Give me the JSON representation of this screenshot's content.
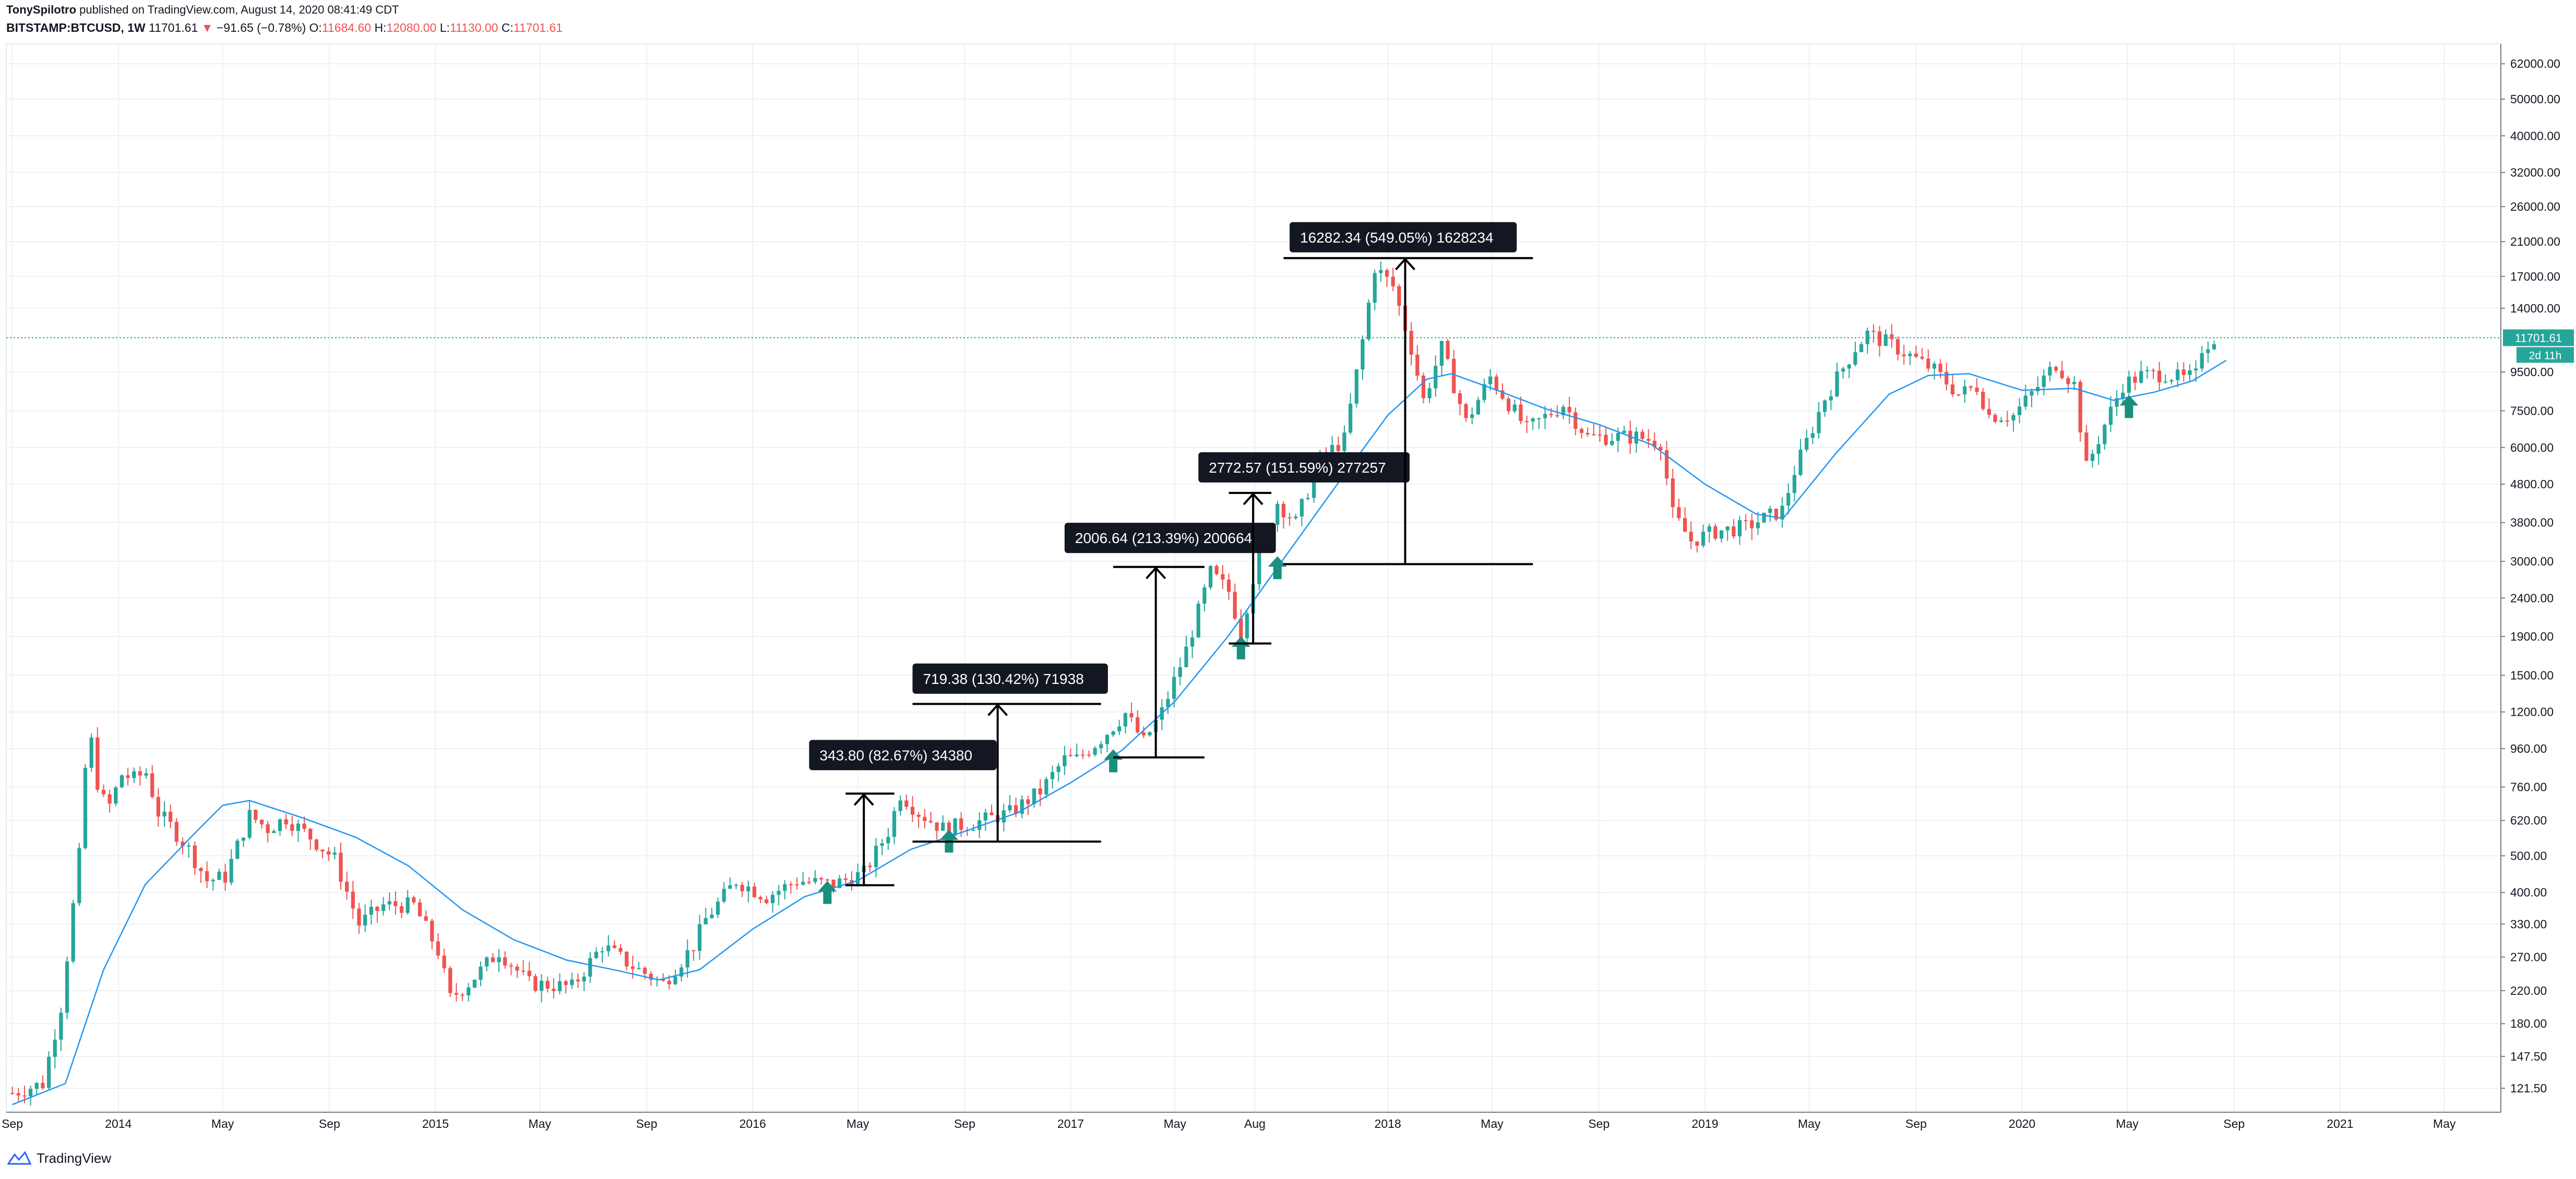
{
  "header": {
    "author": "TonySpilotro",
    "published": "published on TradingView.com, August 14, 2020 08:41:49 CDT",
    "symbol": "BITSTAMP:BTCUSD, 1W",
    "last": "11701.61",
    "change_arrow": "▼",
    "change": "−91.65 (−0.78%)",
    "o_label": "O:",
    "o_value": "11684.60",
    "h_label": "H:",
    "h_value": "12080.00",
    "l_label": "L:",
    "l_value": "11130.00",
    "c_label": "C:",
    "c_value": "11701.61"
  },
  "footer": {
    "brand": "TradingView"
  },
  "colors": {
    "up": "#26a69a",
    "down": "#ef5350",
    "ma": "#2196f3",
    "grid": "#eef1f5",
    "axis_text": "#131722",
    "badge": "#26a69a",
    "label_bg": "#131722"
  },
  "chart_data": {
    "type": "candlestick",
    "symbol": "BITSTAMP:BTCUSD",
    "timeframe": "1W",
    "yscale": "log",
    "ylim": [
      105,
      70000
    ],
    "xlim": [
      "2013-08-25",
      "2021-07-05"
    ],
    "y_ticks": [
      "62000.00",
      "50000.00",
      "40000.00",
      "32000.00",
      "26000.00",
      "21000.00",
      "17000.00",
      "14000.00",
      "9500.00",
      "7500.00",
      "6000.00",
      "4800.00",
      "3800.00",
      "3000.00",
      "2400.00",
      "1900.00",
      "1500.00",
      "1200.00",
      "960.00",
      "760.00",
      "620.00",
      "500.00",
      "400.00",
      "330.00",
      "270.00",
      "220.00",
      "180.00",
      "147.50",
      "121.50"
    ],
    "x_ticks": [
      {
        "date": "2013-09-01",
        "label": "Sep"
      },
      {
        "date": "2014-01-01",
        "label": "2014"
      },
      {
        "date": "2014-05-01",
        "label": "May"
      },
      {
        "date": "2014-09-01",
        "label": "Sep"
      },
      {
        "date": "2015-01-01",
        "label": "2015"
      },
      {
        "date": "2015-05-01",
        "label": "May"
      },
      {
        "date": "2015-09-01",
        "label": "Sep"
      },
      {
        "date": "2016-01-01",
        "label": "2016"
      },
      {
        "date": "2016-05-01",
        "label": "May"
      },
      {
        "date": "2016-09-01",
        "label": "Sep"
      },
      {
        "date": "2017-01-01",
        "label": "2017"
      },
      {
        "date": "2017-05-01",
        "label": "May"
      },
      {
        "date": "2017-08-01",
        "label": "Aug"
      },
      {
        "date": "2018-01-01",
        "label": "2018"
      },
      {
        "date": "2018-05-01",
        "label": "May"
      },
      {
        "date": "2018-09-01",
        "label": "Sep"
      },
      {
        "date": "2019-01-01",
        "label": "2019"
      },
      {
        "date": "2019-05-01",
        "label": "May"
      },
      {
        "date": "2019-09-01",
        "label": "Sep"
      },
      {
        "date": "2020-01-01",
        "label": "2020"
      },
      {
        "date": "2020-05-01",
        "label": "May"
      },
      {
        "date": "2020-09-01",
        "label": "Sep"
      },
      {
        "date": "2021-01-01",
        "label": "2021"
      },
      {
        "date": "2021-05-01",
        "label": "May"
      }
    ],
    "price_keypoints": [
      [
        "2013-09-01",
        118
      ],
      [
        "2013-10-06",
        125
      ],
      [
        "2013-10-27",
        200
      ],
      [
        "2013-11-17",
        500
      ],
      [
        "2013-11-24",
        850
      ],
      [
        "2013-12-01",
        1000
      ],
      [
        "2013-12-08",
        780
      ],
      [
        "2013-12-15",
        700
      ],
      [
        "2013-12-22",
        680
      ],
      [
        "2014-01-05",
        820
      ],
      [
        "2014-01-19",
        800
      ],
      [
        "2014-02-02",
        830
      ],
      [
        "2014-02-16",
        650
      ],
      [
        "2014-03-02",
        600
      ],
      [
        "2014-03-23",
        520
      ],
      [
        "2014-04-13",
        430
      ],
      [
        "2014-05-04",
        440
      ],
      [
        "2014-06-01",
        640
      ],
      [
        "2014-06-22",
        590
      ],
      [
        "2014-07-13",
        630
      ],
      [
        "2014-08-10",
        560
      ],
      [
        "2014-09-07",
        490
      ],
      [
        "2014-10-05",
        330
      ],
      [
        "2014-11-02",
        370
      ],
      [
        "2014-12-07",
        370
      ],
      [
        "2015-01-04",
        280
      ],
      [
        "2015-01-18",
        210
      ],
      [
        "2015-02-08",
        230
      ],
      [
        "2015-03-15",
        280
      ],
      [
        "2015-04-19",
        230
      ],
      [
        "2015-06-07",
        225
      ],
      [
        "2015-07-12",
        290
      ],
      [
        "2015-08-16",
        255
      ],
      [
        "2015-09-20",
        230
      ],
      [
        "2015-10-25",
        290
      ],
      [
        "2015-11-08",
        340
      ],
      [
        "2015-12-13",
        430
      ],
      [
        "2016-01-17",
        390
      ],
      [
        "2016-02-21",
        430
      ],
      [
        "2016-04-03",
        420
      ],
      [
        "2016-05-08",
        450
      ],
      [
        "2016-06-05",
        580
      ],
      [
        "2016-06-19",
        730
      ],
      [
        "2016-07-10",
        650
      ],
      [
        "2016-08-07",
        590
      ],
      [
        "2016-09-11",
        610
      ],
      [
        "2016-10-23",
        650
      ],
      [
        "2016-11-27",
        740
      ],
      [
        "2016-12-25",
        900
      ],
      [
        "2017-01-08",
        900
      ],
      [
        "2017-02-05",
        1020
      ],
      [
        "2017-03-05",
        1190
      ],
      [
        "2017-03-26",
        1000
      ],
      [
        "2017-04-16",
        1200
      ],
      [
        "2017-05-14",
        1750
      ],
      [
        "2017-06-11",
        2800
      ],
      [
        "2017-07-02",
        2500
      ],
      [
        "2017-07-16",
        1950
      ],
      [
        "2017-08-06",
        3200
      ],
      [
        "2017-08-27",
        4300
      ],
      [
        "2017-09-17",
        3800
      ],
      [
        "2017-10-15",
        5600
      ],
      [
        "2017-11-12",
        6300
      ],
      [
        "2017-12-03",
        11500
      ],
      [
        "2017-12-17",
        18000
      ],
      [
        "2018-01-07",
        16000
      ],
      [
        "2018-01-28",
        11000
      ],
      [
        "2018-02-11",
        8000
      ],
      [
        "2018-03-04",
        11000
      ],
      [
        "2018-04-01",
        7000
      ],
      [
        "2018-04-29",
        9200
      ],
      [
        "2018-06-10",
        6700
      ],
      [
        "2018-07-22",
        7800
      ],
      [
        "2018-08-19",
        6400
      ],
      [
        "2018-10-14",
        6400
      ],
      [
        "2018-11-11",
        6200
      ],
      [
        "2018-11-25",
        4000
      ],
      [
        "2018-12-16",
        3400
      ],
      [
        "2019-01-13",
        3600
      ],
      [
        "2019-02-17",
        3700
      ],
      [
        "2019-03-31",
        4100
      ],
      [
        "2019-04-14",
        5200
      ],
      [
        "2019-05-19",
        8100
      ],
      [
        "2019-06-23",
        11000
      ],
      [
        "2019-07-07",
        12000
      ],
      [
        "2019-08-04",
        11200
      ],
      [
        "2019-09-22",
        9600
      ],
      [
        "2019-10-20",
        8300
      ],
      [
        "2019-11-10",
        8700
      ],
      [
        "2019-11-24",
        7300
      ],
      [
        "2019-12-22",
        7300
      ],
      [
        "2020-01-19",
        8700
      ],
      [
        "2020-02-09",
        10000
      ],
      [
        "2020-03-01",
        8800
      ],
      [
        "2020-03-15",
        5300
      ],
      [
        "2020-04-05",
        6900
      ],
      [
        "2020-04-26",
        8800
      ],
      [
        "2020-05-17",
        9300
      ],
      [
        "2020-06-14",
        9400
      ],
      [
        "2020-07-05",
        9100
      ],
      [
        "2020-07-19",
        9300
      ],
      [
        "2020-07-26",
        11000
      ],
      [
        "2020-08-09",
        11701.61
      ]
    ],
    "moving_average": [
      [
        "2013-09-01",
        110
      ],
      [
        "2013-11-01",
        125
      ],
      [
        "2013-12-15",
        250
      ],
      [
        "2014-02-01",
        420
      ],
      [
        "2014-04-01",
        580
      ],
      [
        "2014-05-01",
        680
      ],
      [
        "2014-06-01",
        700
      ],
      [
        "2014-08-01",
        630
      ],
      [
        "2014-10-01",
        560
      ],
      [
        "2014-12-01",
        470
      ],
      [
        "2015-02-01",
        360
      ],
      [
        "2015-04-01",
        300
      ],
      [
        "2015-06-01",
        265
      ],
      [
        "2015-08-01",
        248
      ],
      [
        "2015-09-15",
        235
      ],
      [
        "2015-11-01",
        250
      ],
      [
        "2016-01-01",
        320
      ],
      [
        "2016-03-01",
        390
      ],
      [
        "2016-05-01",
        430
      ],
      [
        "2016-07-01",
        520
      ],
      [
        "2016-09-01",
        580
      ],
      [
        "2016-11-01",
        650
      ],
      [
        "2017-01-01",
        780
      ],
      [
        "2017-03-01",
        950
      ],
      [
        "2017-05-01",
        1280
      ],
      [
        "2017-07-01",
        1900
      ],
      [
        "2017-09-01",
        3000
      ],
      [
        "2017-11-01",
        4700
      ],
      [
        "2018-01-01",
        7300
      ],
      [
        "2018-02-15",
        9100
      ],
      [
        "2018-03-15",
        9400
      ],
      [
        "2018-05-01",
        8600
      ],
      [
        "2018-07-01",
        7600
      ],
      [
        "2018-09-01",
        6900
      ],
      [
        "2018-11-01",
        6100
      ],
      [
        "2019-01-01",
        4800
      ],
      [
        "2019-03-01",
        4000
      ],
      [
        "2019-04-01",
        3900
      ],
      [
        "2019-06-01",
        5800
      ],
      [
        "2019-08-01",
        8300
      ],
      [
        "2019-09-15",
        9300
      ],
      [
        "2019-11-01",
        9400
      ],
      [
        "2020-01-01",
        8500
      ],
      [
        "2020-03-01",
        8600
      ],
      [
        "2020-04-15",
        8000
      ],
      [
        "2020-06-01",
        8400
      ],
      [
        "2020-07-15",
        9000
      ],
      [
        "2020-08-23",
        10200
      ]
    ],
    "last_price": {
      "value": 11701.61,
      "label": "11701.61",
      "countdown": "2d 11h"
    },
    "measurements": [
      {
        "label": "343.80 (82.67%) 34380",
        "from": {
          "date": "2016-05-08",
          "price": 418
        },
        "to": {
          "date": "2016-05-08",
          "price": 730
        },
        "line_from": "2016-04-17",
        "line_to": "2016-06-12",
        "label_date": "2016-03-06",
        "label_price": 920
      },
      {
        "label": "719.38 (130.42%) 71938",
        "from": {
          "date": "2016-10-09",
          "price": 545
        },
        "to": {
          "date": "2016-10-09",
          "price": 1260
        },
        "line_from": "2016-07-03",
        "line_to": "2017-02-05",
        "label_date": "2016-07-03",
        "label_price": 1465
      },
      {
        "label": "2006.64 (213.39%) 200664",
        "from": {
          "date": "2017-04-09",
          "price": 910
        },
        "to": {
          "date": "2017-04-09",
          "price": 2900
        },
        "line_from": "2017-02-19",
        "line_to": "2017-06-04",
        "label_date": "2016-12-25",
        "label_price": 3450
      },
      {
        "label": "2772.57 (151.59%) 277257",
        "from": {
          "date": "2017-07-30",
          "price": 1820
        },
        "to": {
          "date": "2017-07-30",
          "price": 4550
        },
        "line_from": "2017-07-02",
        "line_to": "2017-08-20",
        "label_date": "2017-05-28",
        "label_price": 5300
      },
      {
        "label": "16282.34 (549.05%) 1628234",
        "from": {
          "date": "2018-01-21",
          "price": 2950
        },
        "to": {
          "date": "2018-01-21",
          "price": 19000
        },
        "line_from": "2017-09-03",
        "line_to": "2018-06-17",
        "label_date": "2017-09-10",
        "label_price": 21500
      }
    ],
    "buy_arrows": [
      {
        "date": "2016-03-27",
        "price": 395
      },
      {
        "date": "2016-08-14",
        "price": 540
      },
      {
        "date": "2017-02-19",
        "price": 880
      },
      {
        "date": "2017-07-16",
        "price": 1750
      },
      {
        "date": "2017-08-27",
        "price": 2850
      },
      {
        "date": "2020-05-03",
        "price": 7600
      }
    ]
  }
}
